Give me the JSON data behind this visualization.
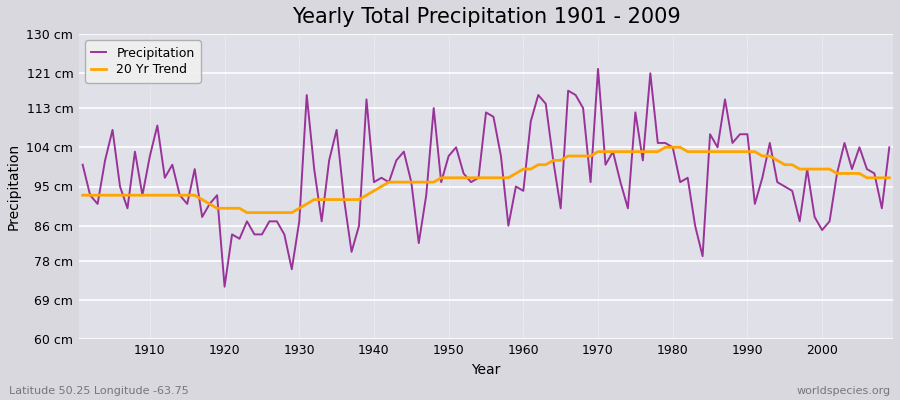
{
  "title": "Yearly Total Precipitation 1901 - 2009",
  "xlabel": "Year",
  "ylabel": "Precipitation",
  "subtitle_left": "Latitude 50.25 Longitude -63.75",
  "subtitle_right": "worldspecies.org",
  "years": [
    1901,
    1902,
    1903,
    1904,
    1905,
    1906,
    1907,
    1908,
    1909,
    1910,
    1911,
    1912,
    1913,
    1914,
    1915,
    1916,
    1917,
    1918,
    1919,
    1920,
    1921,
    1922,
    1923,
    1924,
    1925,
    1926,
    1927,
    1928,
    1929,
    1930,
    1931,
    1932,
    1933,
    1934,
    1935,
    1936,
    1937,
    1938,
    1939,
    1940,
    1941,
    1942,
    1943,
    1944,
    1945,
    1946,
    1947,
    1948,
    1949,
    1950,
    1951,
    1952,
    1953,
    1954,
    1955,
    1956,
    1957,
    1958,
    1959,
    1960,
    1961,
    1962,
    1963,
    1964,
    1965,
    1966,
    1967,
    1968,
    1969,
    1970,
    1971,
    1972,
    1973,
    1974,
    1975,
    1976,
    1977,
    1978,
    1979,
    1980,
    1981,
    1982,
    1983,
    1984,
    1985,
    1986,
    1987,
    1988,
    1989,
    1990,
    1991,
    1992,
    1993,
    1994,
    1995,
    1996,
    1997,
    1998,
    1999,
    2000,
    2001,
    2002,
    2003,
    2004,
    2005,
    2006,
    2007,
    2008,
    2009
  ],
  "precip": [
    100,
    93,
    91,
    101,
    108,
    95,
    90,
    103,
    93,
    102,
    109,
    97,
    100,
    93,
    91,
    99,
    88,
    91,
    93,
    72,
    84,
    83,
    87,
    84,
    84,
    87,
    87,
    84,
    76,
    87,
    116,
    99,
    87,
    101,
    108,
    92,
    80,
    86,
    115,
    96,
    97,
    96,
    101,
    103,
    96,
    82,
    93,
    113,
    96,
    102,
    104,
    98,
    96,
    97,
    112,
    111,
    102,
    86,
    95,
    94,
    110,
    116,
    114,
    101,
    90,
    117,
    116,
    113,
    96,
    122,
    100,
    103,
    96,
    90,
    112,
    101,
    121,
    105,
    105,
    104,
    96,
    97,
    86,
    79,
    107,
    104,
    115,
    105,
    107,
    107,
    91,
    97,
    105,
    96,
    95,
    94,
    87,
    99,
    88,
    85,
    87,
    98,
    105,
    99,
    104,
    99,
    98,
    90,
    104
  ],
  "trend": [
    93,
    93,
    93,
    93,
    93,
    93,
    93,
    93,
    93,
    93,
    93,
    93,
    93,
    93,
    93,
    93,
    92,
    91,
    90,
    90,
    90,
    90,
    89,
    89,
    89,
    89,
    89,
    89,
    89,
    90,
    91,
    92,
    92,
    92,
    92,
    92,
    92,
    92,
    93,
    94,
    95,
    96,
    96,
    96,
    96,
    96,
    96,
    96,
    97,
    97,
    97,
    97,
    97,
    97,
    97,
    97,
    97,
    97,
    98,
    99,
    99,
    100,
    100,
    101,
    101,
    102,
    102,
    102,
    102,
    103,
    103,
    103,
    103,
    103,
    103,
    103,
    103,
    103,
    104,
    104,
    104,
    103,
    103,
    103,
    103,
    103,
    103,
    103,
    103,
    103,
    103,
    102,
    102,
    101,
    100,
    100,
    99,
    99,
    99,
    99,
    99,
    98,
    98,
    98,
    98,
    97,
    97,
    97,
    97
  ],
  "precip_color": "#993399",
  "trend_color": "#ffa500",
  "bg_color": "#d8d8de",
  "plot_bg_color": "#e0e0e8",
  "grid_color": "#ffffff",
  "ylim": [
    60,
    130
  ],
  "yticks": [
    60,
    69,
    78,
    86,
    95,
    104,
    113,
    121,
    130
  ],
  "ytick_labels": [
    "60 cm",
    "69 cm",
    "78 cm",
    "86 cm",
    "95 cm",
    "104 cm",
    "113 cm",
    "121 cm",
    "130 cm"
  ],
  "xticks": [
    1910,
    1920,
    1930,
    1940,
    1950,
    1960,
    1970,
    1980,
    1990,
    2000
  ],
  "title_fontsize": 15,
  "axis_fontsize": 10,
  "tick_fontsize": 9,
  "legend_fontsize": 9,
  "line_width": 1.4
}
